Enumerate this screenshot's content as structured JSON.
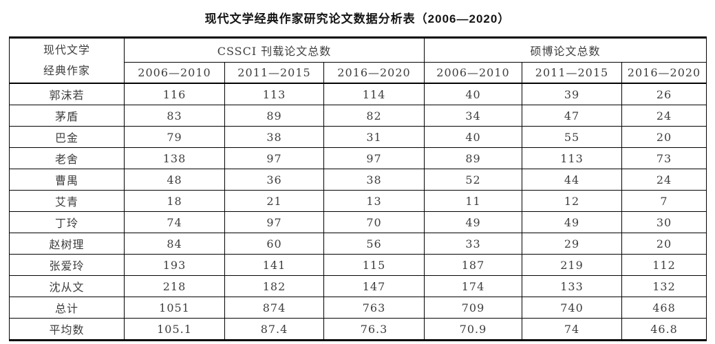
{
  "chart_data": {
    "type": "table",
    "title": "现代文学经典作家研究论文数据分析表（2006—2020）",
    "row_header_title_line1": "现代文学",
    "row_header_title_line2": "经典作家",
    "column_groups": [
      "CSSCI 刊载论文总数",
      "硕博论文总数"
    ],
    "period_columns": [
      "2006—2010",
      "2011—2015",
      "2016—2020"
    ],
    "rows": [
      {
        "writer": "郭沫若",
        "values": [
          "116",
          "113",
          "114",
          "40",
          "39",
          "26"
        ]
      },
      {
        "writer": "茅盾",
        "values": [
          "83",
          "89",
          "82",
          "34",
          "47",
          "24"
        ]
      },
      {
        "writer": "巴金",
        "values": [
          "79",
          "38",
          "31",
          "40",
          "55",
          "20"
        ]
      },
      {
        "writer": "老舍",
        "values": [
          "138",
          "97",
          "97",
          "89",
          "113",
          "73"
        ]
      },
      {
        "writer": "曹禺",
        "values": [
          "48",
          "36",
          "38",
          "52",
          "44",
          "24"
        ]
      },
      {
        "writer": "艾青",
        "values": [
          "18",
          "21",
          "13",
          "11",
          "12",
          "7"
        ]
      },
      {
        "writer": "丁玲",
        "values": [
          "74",
          "97",
          "70",
          "49",
          "49",
          "30"
        ]
      },
      {
        "writer": "赵树理",
        "values": [
          "84",
          "60",
          "56",
          "33",
          "29",
          "20"
        ]
      },
      {
        "writer": "张爱玲",
        "values": [
          "193",
          "141",
          "115",
          "187",
          "219",
          "112"
        ]
      },
      {
        "writer": "沈从文",
        "values": [
          "218",
          "182",
          "147",
          "174",
          "133",
          "132"
        ]
      },
      {
        "writer": "总计",
        "values": [
          "1051",
          "874",
          "763",
          "709",
          "740",
          "468"
        ]
      },
      {
        "writer": "平均数",
        "values": [
          "105.1",
          "87.4",
          "76.3",
          "70.9",
          "74",
          "46.8"
        ]
      }
    ],
    "colors": {
      "border": "#000000",
      "text": "#3d3d3d",
      "title_text": "#141414",
      "background": "#ffffff"
    }
  }
}
